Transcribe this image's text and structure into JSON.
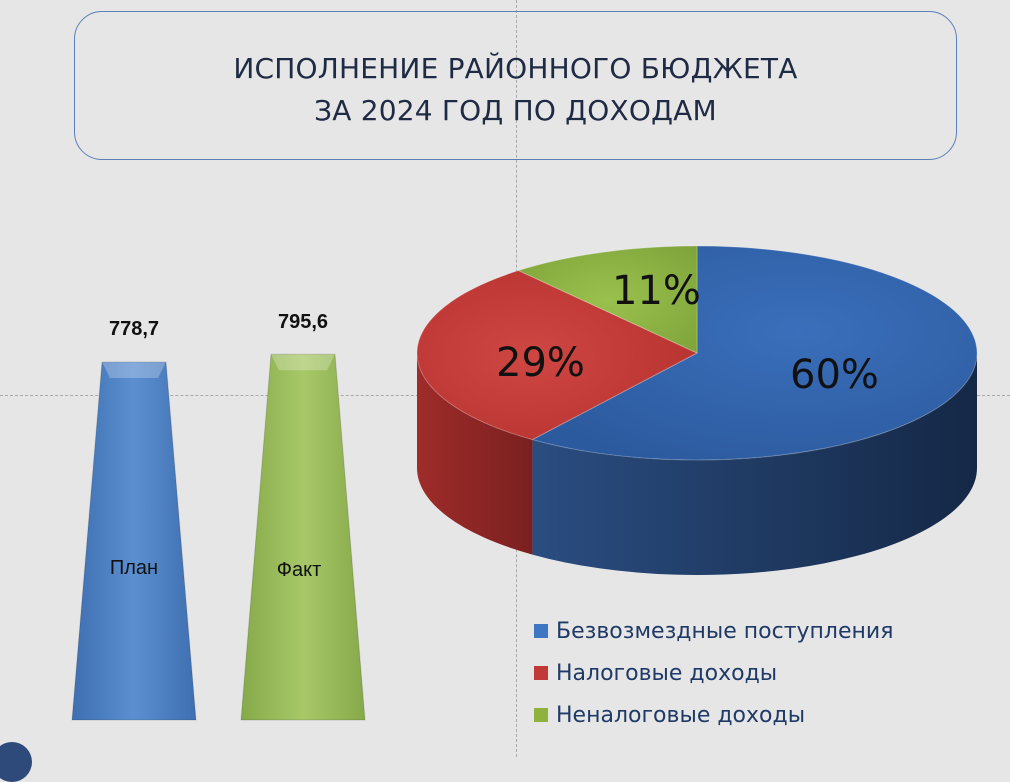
{
  "title": {
    "line1": "ИСПОЛНЕНИЕ РАЙОННОГО БЮДЖЕТА",
    "line2": "ЗА 2024 ГОД ПО ДОХОДАМ"
  },
  "chart_data": [
    {
      "type": "bar",
      "categories": [
        "План",
        "Факт"
      ],
      "values": [
        778.7,
        795.6
      ],
      "value_labels": [
        "778,7",
        "795,6"
      ],
      "colors": [
        "#4f81bd",
        "#9bbb59"
      ]
    },
    {
      "type": "pie",
      "categories": [
        "Безвозмездные поступления",
        "Налоговые доходы",
        "Неналоговые доходы"
      ],
      "values": [
        60,
        29,
        11
      ],
      "value_labels": [
        "60%",
        "29%",
        "11%"
      ],
      "colors": [
        "#3f76c4",
        "#c23a38",
        "#8fb23e"
      ],
      "legend_position": "bottom"
    }
  ]
}
